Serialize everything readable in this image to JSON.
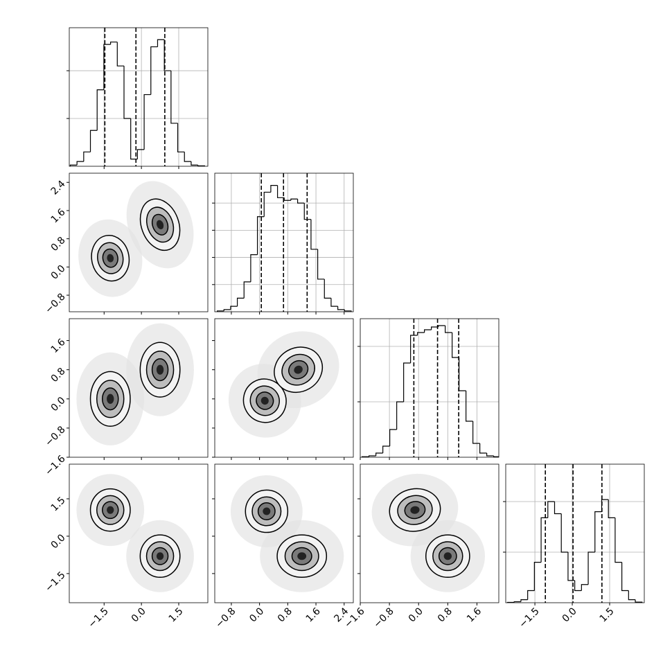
{
  "chart_data": {
    "type": "corner",
    "params": [
      {
        "lim": [
          -2.9,
          2.67
        ],
        "ticks": [
          {
            "value": -1.5,
            "label": "−1.5"
          },
          {
            "value": 0,
            "label": "0.0"
          },
          {
            "value": 1.5,
            "label": "1.5"
          }
        ],
        "bins": [
          -2.86,
          -2.59,
          -2.32,
          -2.05,
          -1.78,
          -1.51,
          -1.24,
          -0.97,
          -0.7,
          -0.43,
          -0.16,
          0.11,
          0.38,
          0.65,
          0.92,
          1.19,
          1.46,
          1.73,
          2.0,
          2.27,
          2.54
        ],
        "counts": [
          5,
          20,
          60,
          150,
          320,
          510,
          520,
          420,
          200,
          30,
          70,
          300,
          500,
          530,
          400,
          180,
          60,
          20,
          5,
          2
        ],
        "hist_ylim": [
          0,
          580
        ],
        "hist_yticks": [
          200,
          400
        ],
        "quantiles": [
          -1.47,
          -0.22,
          0.94
        ],
        "pairs": []
      },
      {
        "lim": [
          -1.27,
          2.66
        ],
        "ticks": [
          {
            "value": -0.8,
            "label": "−0.8"
          },
          {
            "value": 0,
            "label": "0.0"
          },
          {
            "value": 0.8,
            "label": "0.8"
          },
          {
            "value": 1.6,
            "label": "1.6"
          },
          {
            "value": 2.4,
            "label": "2.4"
          }
        ],
        "bins": [
          -1.2,
          -1.01,
          -0.82,
          -0.63,
          -0.44,
          -0.25,
          -0.06,
          0.13,
          0.32,
          0.51,
          0.7,
          0.89,
          1.08,
          1.27,
          1.46,
          1.65,
          1.84,
          2.03,
          2.22,
          2.41,
          2.6
        ],
        "counts": [
          3,
          8,
          20,
          50,
          110,
          210,
          350,
          440,
          465,
          420,
          410,
          415,
          400,
          340,
          230,
          120,
          50,
          20,
          8,
          3
        ],
        "hist_ylim": [
          0,
          510
        ],
        "hist_yticks": [
          100,
          200,
          300,
          400
        ],
        "quantiles": [
          0.05,
          0.68,
          1.35
        ],
        "pairs": [
          [
            {
              "x": -1.25,
              "y": 0.25,
              "sx": 0.75,
              "sy": 0.65,
              "angle": -10
            },
            {
              "x": 0.75,
              "y": 1.2,
              "sx": 0.75,
              "sy": 0.75,
              "angle": -20
            }
          ]
        ]
      },
      {
        "lim": [
          -1.6,
          2.2
        ],
        "ticks": [
          {
            "value": -1.6,
            "label": "−1.6"
          },
          {
            "value": -0.8,
            "label": "−0.8"
          },
          {
            "value": 0,
            "label": "0.0"
          },
          {
            "value": 0.8,
            "label": "0.8"
          },
          {
            "value": 1.6,
            "label": "1.6"
          }
        ],
        "bins": [
          -1.55,
          -1.36,
          -1.17,
          -0.98,
          -0.79,
          -0.6,
          -0.41,
          -0.22,
          -0.03,
          0.16,
          0.35,
          0.54,
          0.73,
          0.92,
          1.11,
          1.3,
          1.49,
          1.68,
          1.87,
          2.06,
          2.25
        ],
        "counts": [
          2,
          5,
          15,
          40,
          100,
          200,
          340,
          440,
          450,
          460,
          470,
          475,
          450,
          360,
          240,
          130,
          50,
          15,
          5,
          2
        ],
        "hist_ylim": [
          0,
          500
        ],
        "hist_yticks": [
          200,
          400
        ],
        "quantiles": [
          -0.13,
          0.52,
          1.1
        ],
        "pairs": [
          [
            {
              "x": -1.25,
              "y": 0.0,
              "sx": 0.8,
              "sy": 0.75,
              "angle": 0
            },
            {
              "x": 0.75,
              "y": 0.8,
              "sx": 0.8,
              "sy": 0.75,
              "angle": 0
            }
          ],
          [
            {
              "x": 0.15,
              "y": -0.05,
              "sx": 0.6,
              "sy": 0.6,
              "angle": -30
            },
            {
              "x": 1.1,
              "y": 0.8,
              "sx": 0.7,
              "sy": 0.6,
              "angle": -30
            }
          ]
        ]
      },
      {
        "lim": [
          -2.67,
          2.89
        ],
        "ticks": [
          {
            "value": -1.5,
            "label": "−1.5"
          },
          {
            "value": 0,
            "label": "0.0"
          },
          {
            "value": 1.5,
            "label": "1.5"
          }
        ],
        "bins": [
          -2.6,
          -2.33,
          -2.06,
          -1.79,
          -1.52,
          -1.25,
          -0.98,
          -0.71,
          -0.44,
          -0.17,
          0.1,
          0.37,
          0.64,
          0.91,
          1.18,
          1.45,
          1.72,
          1.99,
          2.26,
          2.53,
          2.8
        ],
        "counts": [
          2,
          5,
          15,
          60,
          200,
          420,
          500,
          440,
          250,
          110,
          60,
          90,
          250,
          450,
          510,
          420,
          200,
          60,
          15,
          3
        ],
        "hist_ylim": [
          0,
          685
        ],
        "hist_yticks": [
          250,
          500
        ],
        "quantiles": [
          -1.08,
          0.03,
          1.19
        ],
        "pairs": [
          [
            {
              "x": -1.25,
              "y": 1.05,
              "sx": 0.8,
              "sy": 0.85,
              "angle": 0
            },
            {
              "x": 0.75,
              "y": -0.8,
              "sx": 0.8,
              "sy": 0.85,
              "angle": 0
            }
          ],
          [
            {
              "x": 0.2,
              "y": 1.0,
              "sx": 0.6,
              "sy": 0.85,
              "angle": 0
            },
            {
              "x": 1.2,
              "y": -0.8,
              "sx": 0.7,
              "sy": 0.85,
              "angle": 0
            }
          ],
          [
            {
              "x": -0.1,
              "y": 1.05,
              "sx": 0.7,
              "sy": 0.85,
              "angle": -10
            },
            {
              "x": 0.8,
              "y": -0.8,
              "sx": 0.6,
              "sy": 0.85,
              "angle": 0
            }
          ]
        ]
      }
    ]
  }
}
